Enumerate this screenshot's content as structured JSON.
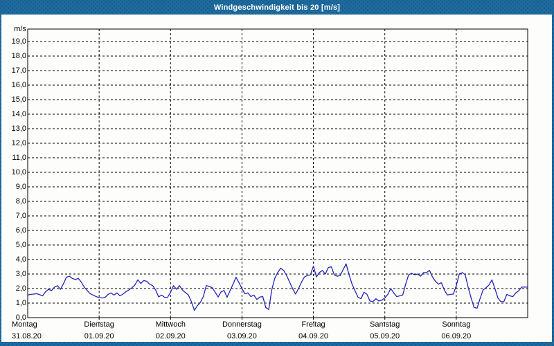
{
  "window": {
    "title": "Windgeschwindigkeit bis 20 [m/s]"
  },
  "colors": {
    "frame_blue": "#1e6b9e",
    "frame_blue_dots": "#175a8b",
    "panel_white": "#fdfdfb",
    "axis_black": "#000000",
    "line_blue": "#2222bb"
  },
  "chart_data": {
    "type": "line",
    "title": "Windgeschwindigkeit bis 20 [m/s]",
    "ylabel": "m/s",
    "ylim": [
      0,
      20
    ],
    "ytick_step": 1.0,
    "ytick_labels": [
      "0,0",
      "1,0",
      "2,0",
      "3,0",
      "4,0",
      "5,0",
      "6,0",
      "7,0",
      "8,0",
      "9,0",
      "10,0",
      "11,0",
      "12,0",
      "13,0",
      "14,0",
      "15,0",
      "16,0",
      "17,0",
      "18,0",
      "19,0"
    ],
    "grid": "dashed",
    "legend": "none",
    "x_unit": "hours",
    "x_range_hours": [
      0,
      168
    ],
    "days": [
      {
        "day": "Montag",
        "date": "31.08.20"
      },
      {
        "day": "Dienstag",
        "date": "01.09.20"
      },
      {
        "day": "Mittwoch",
        "date": "02.09.20"
      },
      {
        "day": "Donnerstag",
        "date": "03.09.20"
      },
      {
        "day": "Freitag",
        "date": "04.09.20"
      },
      {
        "day": "Samstag",
        "date": "05.09.20"
      },
      {
        "day": "Sonntag",
        "date": "06.09.20"
      }
    ],
    "series": [
      {
        "name": "Windgeschwindigkeit [m/s]",
        "color": "#2222bb",
        "values": [
          1.55,
          1.6,
          1.62,
          1.65,
          1.58,
          1.5,
          1.78,
          1.95,
          1.86,
          2.1,
          2.2,
          1.95,
          2.33,
          2.78,
          2.85,
          2.7,
          2.62,
          2.7,
          2.45,
          2.1,
          1.86,
          1.65,
          1.55,
          1.45,
          1.38,
          1.35,
          1.38,
          1.6,
          1.7,
          1.55,
          1.7,
          1.5,
          1.62,
          1.78,
          1.9,
          2.05,
          2.25,
          2.6,
          2.35,
          2.55,
          2.5,
          2.3,
          2.2,
          1.9,
          1.43,
          1.55,
          1.4,
          1.4,
          1.75,
          2.2,
          1.95,
          2.2,
          1.9,
          1.72,
          1.55,
          1.1,
          0.5,
          0.82,
          1.05,
          1.45,
          2.2,
          2.15,
          2.05,
          1.75,
          1.42,
          1.78,
          1.86,
          1.4,
          1.85,
          2.3,
          2.78,
          2.4,
          2.0,
          1.64,
          1.7,
          1.45,
          1.55,
          1.25,
          1.42,
          1.45,
          0.7,
          0.55,
          1.9,
          2.7,
          3.1,
          3.4,
          3.25,
          2.9,
          2.45,
          2.0,
          1.62,
          2.0,
          2.45,
          2.8,
          2.9,
          2.95,
          3.55,
          2.8,
          3.1,
          3.25,
          3.0,
          3.45,
          3.5,
          2.95,
          2.85,
          2.9,
          3.3,
          3.7,
          2.95,
          2.3,
          1.85,
          1.4,
          1.3,
          1.75,
          1.6,
          1.15,
          1.1,
          1.3,
          1.15,
          1.2,
          1.35,
          1.6,
          2.0,
          1.7,
          1.45,
          1.5,
          1.55,
          2.3,
          2.95,
          3.05,
          2.95,
          3.0,
          2.85,
          3.1,
          3.1,
          3.25,
          2.8,
          2.5,
          2.3,
          2.4,
          1.9,
          1.55,
          1.6,
          1.62,
          2.2,
          3.0,
          3.1,
          2.95,
          2.1,
          1.35,
          0.7,
          0.65,
          1.3,
          1.9,
          2.05,
          2.25,
          2.6,
          2.0,
          1.35,
          1.1,
          1.1,
          1.6,
          1.5,
          1.45,
          1.7,
          1.85,
          2.1,
          2.1,
          2.1
        ]
      }
    ]
  }
}
